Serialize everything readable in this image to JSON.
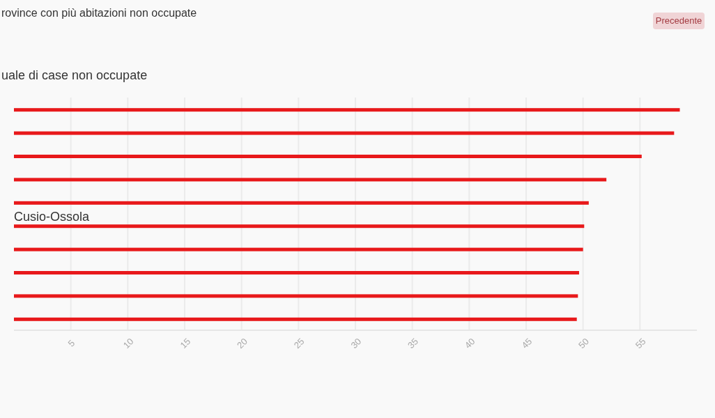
{
  "chart_data": {
    "type": "bar",
    "orientation": "horizontal",
    "title": "rovince con più abitazioni non occupate",
    "subtitle": "uale di case non occupate",
    "categories": [
      null,
      null,
      null,
      null,
      null,
      "Cusio-Ossola",
      null,
      null,
      null,
      null
    ],
    "values": [
      58.5,
      58,
      55.15,
      52.05,
      50.5,
      50.1,
      50,
      49.65,
      49.55,
      49.45
    ],
    "color": "#e8191b",
    "xlim": [
      0,
      60
    ],
    "xticks": [
      5,
      10,
      15,
      20,
      25,
      30,
      35,
      40,
      45,
      50,
      55
    ],
    "grid": "x",
    "annotations": [
      "Precedente"
    ]
  }
}
